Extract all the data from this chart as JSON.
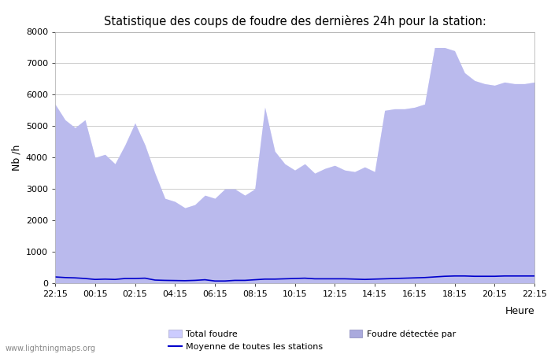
{
  "title": "Statistique des coups de foudre des dernières 24h pour la station:",
  "xlabel": "Heure",
  "ylabel": "Nb /h",
  "xlim": [
    0,
    24
  ],
  "ylim": [
    0,
    8000
  ],
  "yticks": [
    0,
    1000,
    2000,
    3000,
    4000,
    5000,
    6000,
    7000,
    8000
  ],
  "xtick_labels": [
    "22:15",
    "00:15",
    "02:15",
    "04:15",
    "06:15",
    "08:15",
    "10:15",
    "12:15",
    "14:15",
    "16:15",
    "18:15",
    "20:15",
    "22:15"
  ],
  "xtick_positions": [
    0,
    2,
    4,
    6,
    8,
    10,
    12,
    14,
    16,
    18,
    20,
    22,
    24
  ],
  "total_foudre_color": "#ccccff",
  "foudre_detectee_color": "#aaaadd",
  "moyenne_color": "#0000cc",
  "background_color": "#ffffff",
  "plot_bg_color": "#ffffff",
  "grid_color": "#cccccc",
  "watermark": "www.lightningmaps.org",
  "legend_labels": [
    "Total foudre",
    "Moyenne de toutes les stations",
    "Foudre détectée par"
  ],
  "x": [
    0,
    0.5,
    1.0,
    1.5,
    2.0,
    2.5,
    3.0,
    3.5,
    4.0,
    4.5,
    5.0,
    5.5,
    6.0,
    6.5,
    7.0,
    7.5,
    8.0,
    8.5,
    9.0,
    9.5,
    10.0,
    10.5,
    11.0,
    11.5,
    12.0,
    12.5,
    13.0,
    13.5,
    14.0,
    14.5,
    15.0,
    15.5,
    16.0,
    16.5,
    17.0,
    17.5,
    18.0,
    18.5,
    19.0,
    19.5,
    20.0,
    20.5,
    21.0,
    21.5,
    22.0,
    22.5,
    23.0,
    23.5,
    24.0
  ],
  "total_foudre_y": [
    5700,
    5200,
    4950,
    5200,
    4000,
    4100,
    3800,
    4400,
    5100,
    4400,
    3500,
    2700,
    2600,
    2400,
    2500,
    2800,
    2700,
    3000,
    3000,
    2800,
    3000,
    5600,
    4200,
    3800,
    3600,
    3800,
    3500,
    3650,
    3750,
    3600,
    3550,
    3700,
    3550,
    5500,
    5550,
    5550,
    5600,
    5700,
    7500,
    7500,
    7400,
    6700,
    6450,
    6350,
    6300,
    6400,
    6350,
    6350,
    6400
  ],
  "foudre_detectee_y": [
    5700,
    5200,
    4950,
    5200,
    4000,
    4100,
    3800,
    4400,
    5100,
    4400,
    3500,
    2700,
    2600,
    2400,
    2500,
    2800,
    2700,
    3000,
    3000,
    2800,
    3000,
    5600,
    4200,
    3800,
    3600,
    3800,
    3500,
    3650,
    3750,
    3600,
    3550,
    3700,
    3550,
    5500,
    5550,
    5550,
    5600,
    5700,
    7500,
    7500,
    7400,
    6700,
    6450,
    6350,
    6300,
    6400,
    6350,
    6350,
    6400
  ],
  "moyenne_y": [
    200,
    180,
    170,
    150,
    120,
    130,
    120,
    150,
    150,
    160,
    100,
    90,
    85,
    80,
    90,
    110,
    70,
    70,
    90,
    90,
    110,
    130,
    130,
    140,
    150,
    160,
    140,
    140,
    140,
    140,
    130,
    120,
    130,
    140,
    150,
    160,
    170,
    180,
    200,
    220,
    230,
    230,
    220,
    220,
    220,
    230,
    230,
    230,
    230
  ]
}
